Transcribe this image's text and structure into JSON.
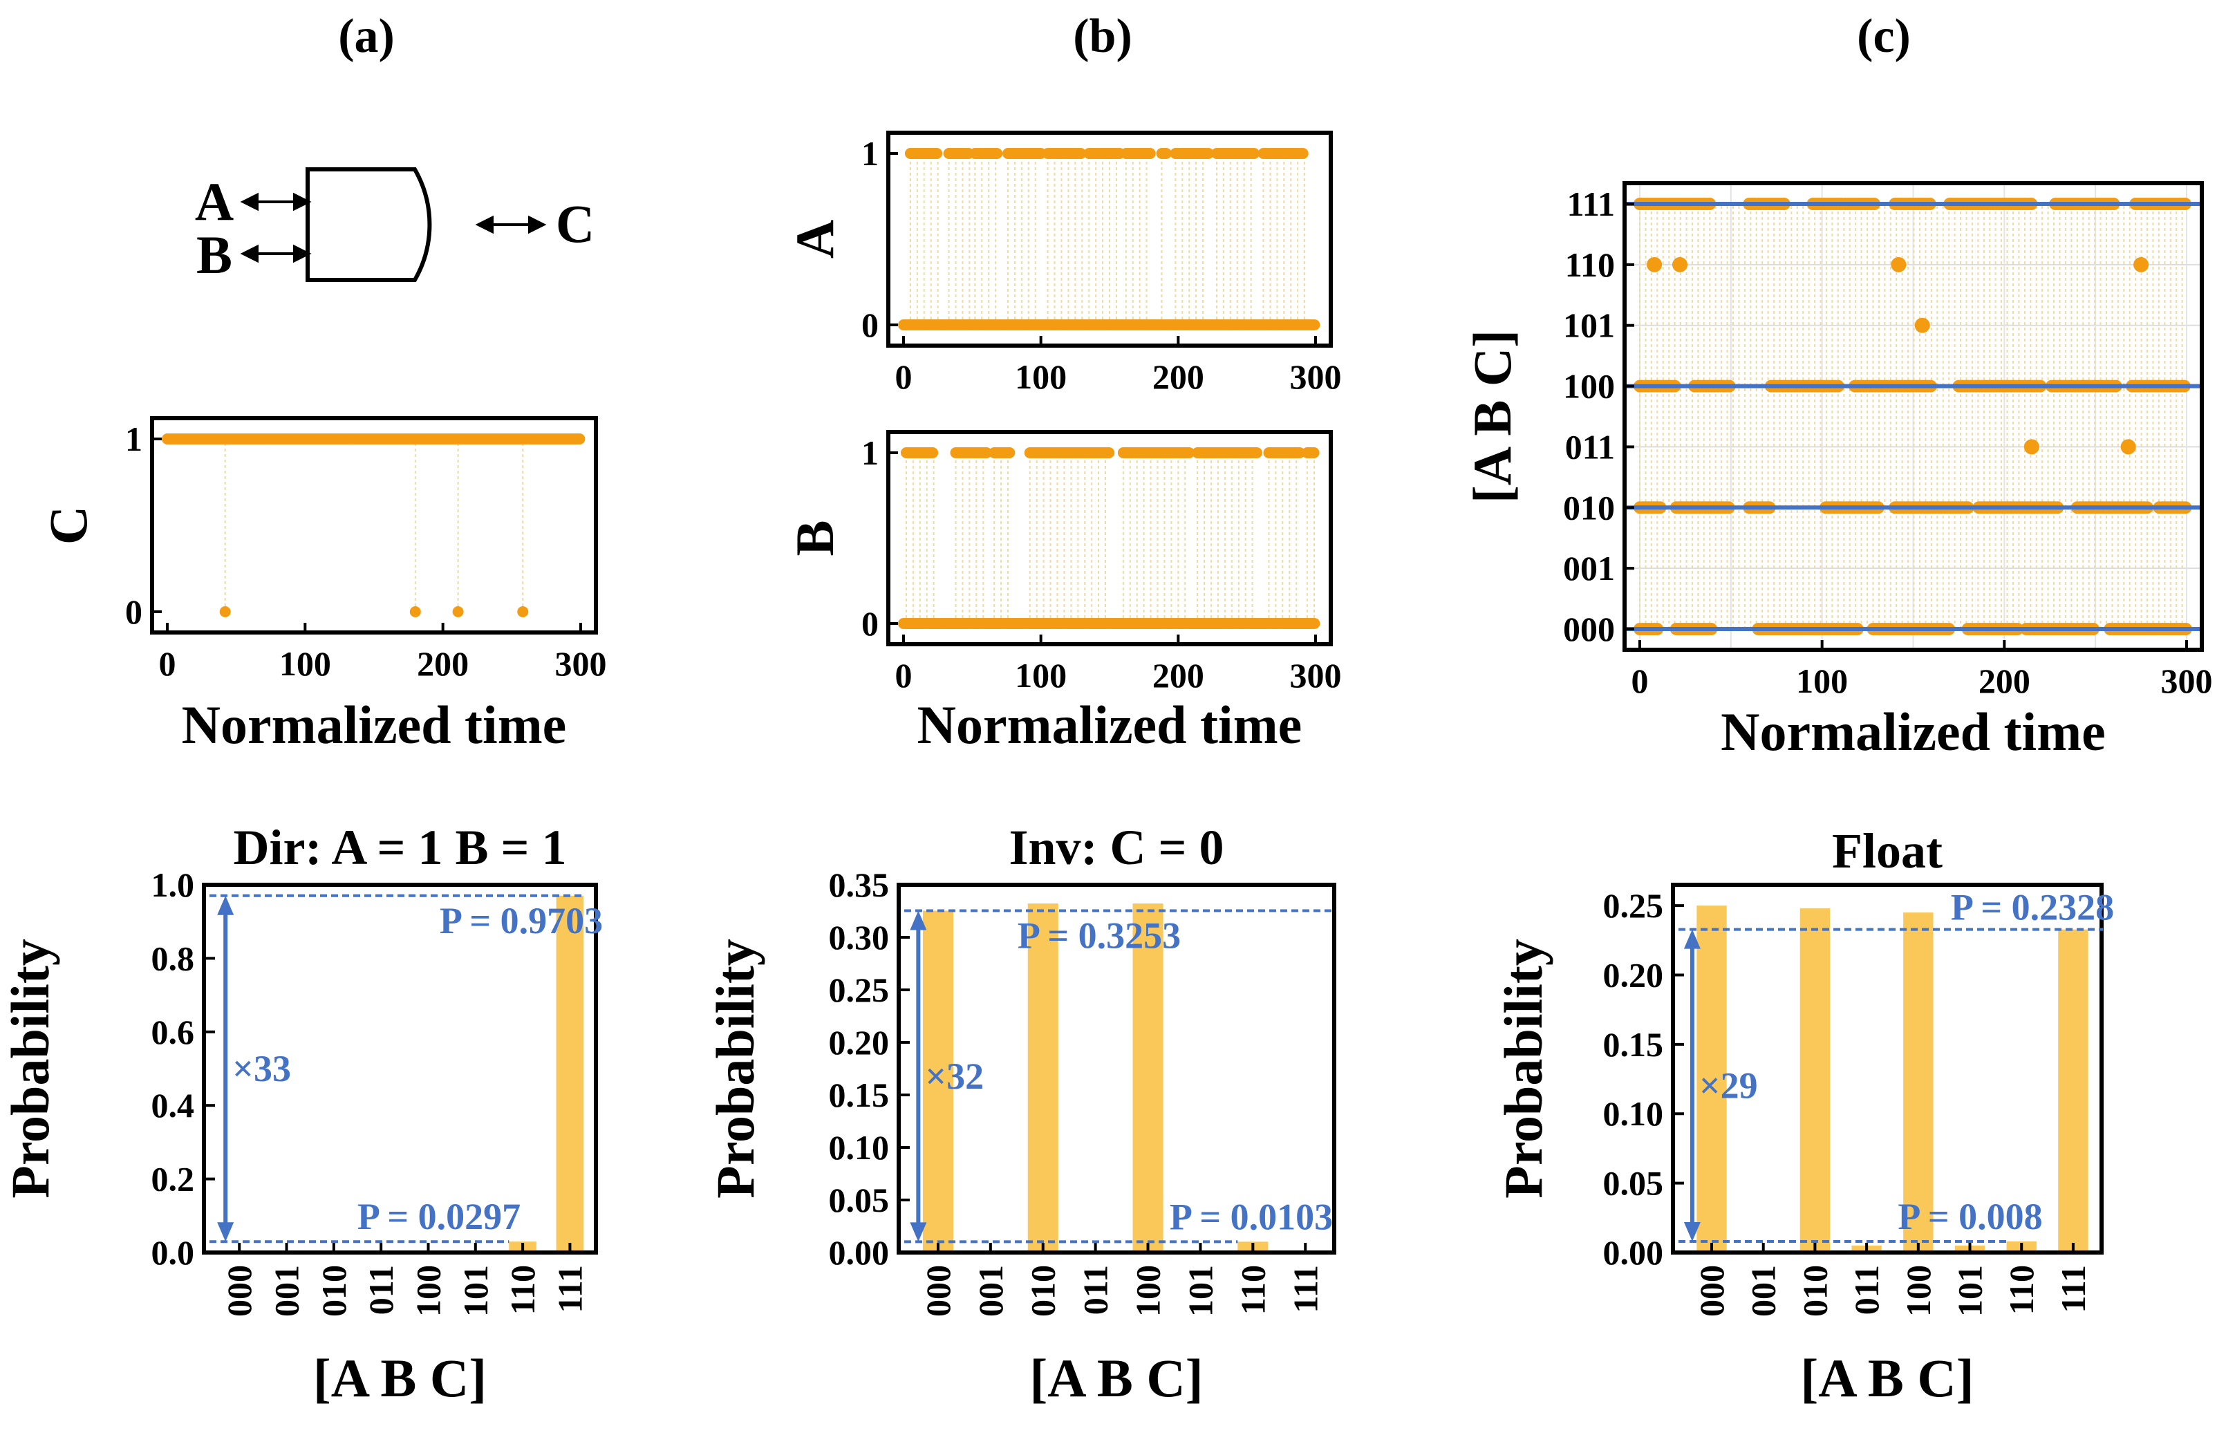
{
  "panel_labels": [
    "(a)",
    "(b)",
    "(c)"
  ],
  "colors": {
    "orange": "#F39C12",
    "bar": "#F9C858",
    "blue": "#4472C4",
    "trace": "#F2D9A0"
  },
  "gate": {
    "label_a": "A",
    "label_b": "B",
    "label_c": "C"
  },
  "chart_data": [
    {
      "id": "a-time",
      "type": "scatter",
      "ylabel": "C",
      "xlabel": "Normalized time",
      "xlim": [
        0,
        300
      ],
      "xticks": [
        "0",
        "100",
        "200",
        "300"
      ],
      "yticks": [
        "0",
        "1"
      ],
      "ylim": [
        0,
        1
      ],
      "high_value": 1,
      "low_points": [
        42,
        180,
        211,
        258
      ]
    },
    {
      "id": "b-time-a",
      "type": "scatter",
      "ylabel": "A",
      "xlabel": "",
      "xlim": [
        0,
        300
      ],
      "xticks": [
        "0",
        "100",
        "200",
        "300"
      ],
      "yticks": [
        "0",
        "1"
      ],
      "ylim": [
        0,
        1
      ],
      "high_segments": [
        [
          5,
          25
        ],
        [
          33,
          48
        ],
        [
          52,
          68
        ],
        [
          76,
          100
        ],
        [
          105,
          130
        ],
        [
          135,
          158
        ],
        [
          162,
          180
        ],
        [
          188,
          192
        ],
        [
          198,
          222
        ],
        [
          228,
          256
        ],
        [
          262,
          292
        ]
      ],
      "low_segments": [
        [
          0,
          300
        ]
      ]
    },
    {
      "id": "b-time-b",
      "type": "scatter",
      "ylabel": "B",
      "xlabel": "Normalized time",
      "xlim": [
        0,
        300
      ],
      "xticks": [
        "0",
        "100",
        "200",
        "300"
      ],
      "yticks": [
        "0",
        "1"
      ],
      "ylim": [
        0,
        1
      ],
      "high_segments": [
        [
          2,
          22
        ],
        [
          38,
          62
        ],
        [
          66,
          78
        ],
        [
          92,
          150
        ],
        [
          160,
          208
        ],
        [
          214,
          258
        ],
        [
          266,
          290
        ],
        [
          294,
          300
        ]
      ],
      "low_segments": [
        [
          0,
          300
        ]
      ]
    },
    {
      "id": "c-time",
      "type": "scatter",
      "ylabel": "[A B C]",
      "xlabel": "Normalized time",
      "xlim": [
        0,
        300
      ],
      "xticks": [
        "0",
        "100",
        "200",
        "300"
      ],
      "yticks": [
        "000",
        "001",
        "010",
        "011",
        "100",
        "101",
        "110",
        "111"
      ],
      "lines": [
        0,
        2,
        4,
        7
      ],
      "segments": {
        "7": [
          [
            0,
            40
          ],
          [
            60,
            80
          ],
          [
            95,
            130
          ],
          [
            140,
            160
          ],
          [
            170,
            215
          ],
          [
            228,
            260
          ],
          [
            272,
            300
          ]
        ],
        "4": [
          [
            0,
            20
          ],
          [
            30,
            50
          ],
          [
            72,
            110
          ],
          [
            118,
            160
          ],
          [
            175,
            220
          ],
          [
            226,
            262
          ],
          [
            270,
            300
          ]
        ],
        "2": [
          [
            0,
            12
          ],
          [
            20,
            50
          ],
          [
            60,
            72
          ],
          [
            102,
            132
          ],
          [
            140,
            180
          ],
          [
            186,
            230
          ],
          [
            240,
            280
          ],
          [
            285,
            300
          ]
        ],
        "0": [
          [
            0,
            10
          ],
          [
            20,
            40
          ],
          [
            65,
            120
          ],
          [
            128,
            170
          ],
          [
            180,
            208
          ],
          [
            212,
            250
          ],
          [
            258,
            300
          ]
        ]
      },
      "points": [
        [
          8,
          6
        ],
        [
          22,
          6
        ],
        [
          142,
          6
        ],
        [
          275,
          6
        ],
        [
          155,
          5
        ],
        [
          215,
          3
        ],
        [
          268,
          3
        ]
      ]
    },
    {
      "id": "a-bar",
      "type": "bar",
      "title": "Dir: A = 1 B = 1",
      "ylabel": "Probability",
      "xlabel": "[A B C]",
      "categories": [
        "000",
        "001",
        "010",
        "011",
        "100",
        "101",
        "110",
        "111"
      ],
      "values": [
        0,
        0,
        0,
        0,
        0,
        0,
        0.0297,
        0.9703
      ],
      "ylim": [
        0,
        1.0
      ],
      "yticks": [
        "0.0",
        "0.2",
        "0.4",
        "0.6",
        "0.8",
        "1.0"
      ],
      "annot_high": "P = 0.9703",
      "annot_low": "P = 0.0297",
      "ratio": "×33",
      "high": 0.9703,
      "low": 0.0297
    },
    {
      "id": "b-bar",
      "type": "bar",
      "title": "Inv: C = 0",
      "ylabel": "Probability",
      "xlabel": "[A B C]",
      "categories": [
        "000",
        "001",
        "010",
        "011",
        "100",
        "101",
        "110",
        "111"
      ],
      "values": [
        0.3253,
        0,
        0.3322,
        0,
        0.3322,
        0,
        0.0103,
        0
      ],
      "ylim": [
        0,
        0.35
      ],
      "yticks": [
        "0.00",
        "0.05",
        "0.10",
        "0.15",
        "0.20",
        "0.25",
        "0.30",
        "0.35"
      ],
      "annot_high": "P = 0.3253",
      "annot_low": "P = 0.0103",
      "ratio": "×32",
      "high": 0.3253,
      "low": 0.0103
    },
    {
      "id": "c-bar",
      "type": "bar",
      "title": "Float",
      "ylabel": "Probability",
      "xlabel": "[A B C]",
      "categories": [
        "000",
        "001",
        "010",
        "011",
        "100",
        "101",
        "110",
        "111"
      ],
      "values": [
        0.25,
        0,
        0.248,
        0.005,
        0.245,
        0.005,
        0.008,
        0.2328
      ],
      "ylim": [
        0,
        0.265
      ],
      "yticks": [
        "0.00",
        "0.05",
        "0.10",
        "0.15",
        "0.20",
        "0.25"
      ],
      "annot_high": "P = 0.2328",
      "annot_low": "P = 0.008",
      "ratio": "×29",
      "high": 0.2328,
      "low": 0.008
    }
  ]
}
